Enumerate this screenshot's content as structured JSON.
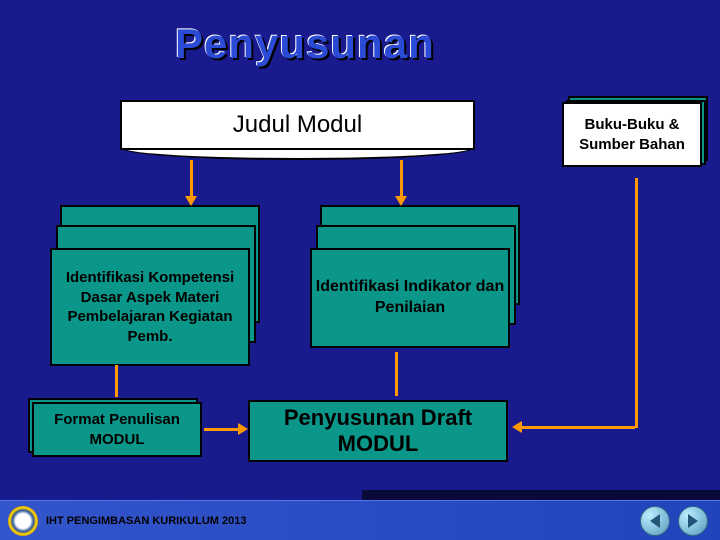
{
  "title": "Penyusunan",
  "boxes": {
    "judul": "Judul Modul",
    "buku": "Buku-Buku & Sumber Bahan",
    "ident_left": "Identifikasi Kompetensi Dasar Aspek Materi Pembelajaran Kegiatan Pemb.",
    "ident_right": "Identifikasi Indikator dan Penilaian",
    "format": "Format Penulisan MODUL",
    "penyusunan": "Penyusunan Draft MODUL"
  },
  "footer": "IHT PENGIMBASAN KURIKULUM 2013",
  "colors": {
    "bg": "#1a1a8f",
    "teal": "#0a9688",
    "orange": "#ff9900",
    "title": "#2b4bd6"
  }
}
